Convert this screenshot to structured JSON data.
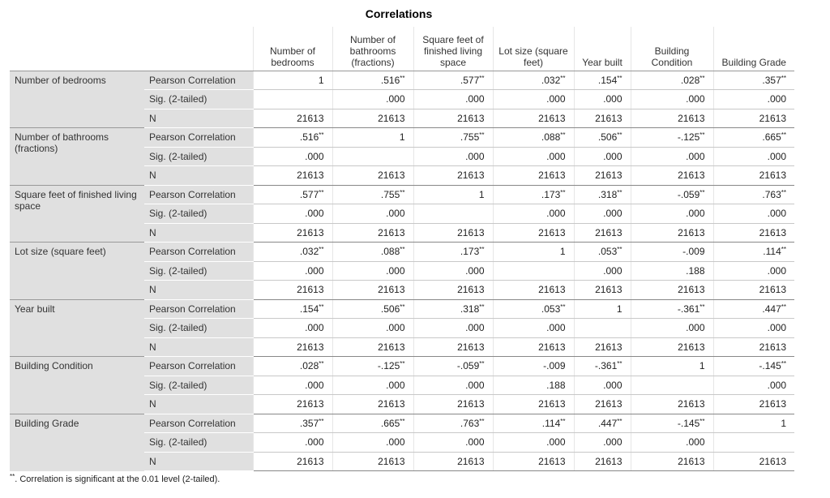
{
  "title": "Correlations",
  "columns": [
    "Number of bedrooms",
    "Number of bathrooms (fractions)",
    "Square feet of finished living space",
    "Lot size (square feet)",
    "Year built",
    "Building Condition",
    "Building Grade"
  ],
  "stat_labels": [
    "Pearson Correlation",
    "Sig. (2-tailed)",
    "N"
  ],
  "rows": [
    {
      "label": "Number of bedrooms",
      "pearson": [
        "1",
        {
          "text": ".516",
          "sup": "**"
        },
        {
          "text": ".577",
          "sup": "**"
        },
        {
          "text": ".032",
          "sup": "**"
        },
        {
          "text": ".154",
          "sup": "**"
        },
        {
          "text": ".028",
          "sup": "**"
        },
        {
          "text": ".357",
          "sup": "**"
        }
      ],
      "sig": [
        null,
        ".000",
        ".000",
        ".000",
        ".000",
        ".000",
        ".000"
      ],
      "n": [
        21613,
        21613,
        21613,
        21613,
        21613,
        21613,
        21613
      ]
    },
    {
      "label": "Number of bathrooms (fractions)",
      "pearson": [
        {
          "text": ".516",
          "sup": "**"
        },
        "1",
        {
          "text": ".755",
          "sup": "**"
        },
        {
          "text": ".088",
          "sup": "**"
        },
        {
          "text": ".506",
          "sup": "**"
        },
        {
          "text": "-.125",
          "sup": "**"
        },
        {
          "text": ".665",
          "sup": "**"
        }
      ],
      "sig": [
        ".000",
        null,
        ".000",
        ".000",
        ".000",
        ".000",
        ".000"
      ],
      "n": [
        21613,
        21613,
        21613,
        21613,
        21613,
        21613,
        21613
      ]
    },
    {
      "label": "Square feet of finished living space",
      "pearson": [
        {
          "text": ".577",
          "sup": "**"
        },
        {
          "text": ".755",
          "sup": "**"
        },
        "1",
        {
          "text": ".173",
          "sup": "**"
        },
        {
          "text": ".318",
          "sup": "**"
        },
        {
          "text": "-.059",
          "sup": "**"
        },
        {
          "text": ".763",
          "sup": "**"
        }
      ],
      "sig": [
        ".000",
        ".000",
        null,
        ".000",
        ".000",
        ".000",
        ".000"
      ],
      "n": [
        21613,
        21613,
        21613,
        21613,
        21613,
        21613,
        21613
      ]
    },
    {
      "label": "Lot size (square feet)",
      "pearson": [
        {
          "text": ".032",
          "sup": "**"
        },
        {
          "text": ".088",
          "sup": "**"
        },
        {
          "text": ".173",
          "sup": "**"
        },
        "1",
        {
          "text": ".053",
          "sup": "**"
        },
        "-.009",
        {
          "text": ".114",
          "sup": "**"
        }
      ],
      "sig": [
        ".000",
        ".000",
        ".000",
        null,
        ".000",
        ".188",
        ".000"
      ],
      "n": [
        21613,
        21613,
        21613,
        21613,
        21613,
        21613,
        21613
      ]
    },
    {
      "label": "Year built",
      "pearson": [
        {
          "text": ".154",
          "sup": "**"
        },
        {
          "text": ".506",
          "sup": "**"
        },
        {
          "text": ".318",
          "sup": "**"
        },
        {
          "text": ".053",
          "sup": "**"
        },
        "1",
        {
          "text": "-.361",
          "sup": "**"
        },
        {
          "text": ".447",
          "sup": "**"
        }
      ],
      "sig": [
        ".000",
        ".000",
        ".000",
        ".000",
        null,
        ".000",
        ".000"
      ],
      "n": [
        21613,
        21613,
        21613,
        21613,
        21613,
        21613,
        21613
      ]
    },
    {
      "label": "Building Condition",
      "pearson": [
        {
          "text": ".028",
          "sup": "**"
        },
        {
          "text": "-.125",
          "sup": "**"
        },
        {
          "text": "-.059",
          "sup": "**"
        },
        "-.009",
        {
          "text": "-.361",
          "sup": "**"
        },
        "1",
        {
          "text": "-.145",
          "sup": "**"
        }
      ],
      "sig": [
        ".000",
        ".000",
        ".000",
        ".188",
        ".000",
        null,
        ".000"
      ],
      "n": [
        21613,
        21613,
        21613,
        21613,
        21613,
        21613,
        21613
      ]
    },
    {
      "label": "Building Grade",
      "pearson": [
        {
          "text": ".357",
          "sup": "**"
        },
        {
          "text": ".665",
          "sup": "**"
        },
        {
          "text": ".763",
          "sup": "**"
        },
        {
          "text": ".114",
          "sup": "**"
        },
        {
          "text": ".447",
          "sup": "**"
        },
        {
          "text": "-.145",
          "sup": "**"
        },
        "1"
      ],
      "sig": [
        ".000",
        ".000",
        ".000",
        ".000",
        ".000",
        ".000",
        null
      ],
      "n": [
        21613,
        21613,
        21613,
        21613,
        21613,
        21613,
        21613
      ]
    }
  ],
  "footnote": {
    "mark": "**",
    "text": ". Correlation is significant at the 0.01 level (2-tailed)."
  }
}
